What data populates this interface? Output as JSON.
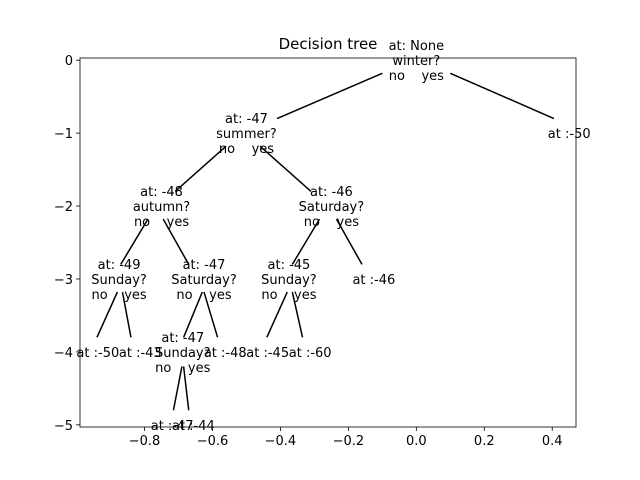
{
  "title": "Decision tree",
  "axes": {
    "xlim": [
      -0.99,
      0.47
    ],
    "ylim": [
      -5.03,
      0.03
    ],
    "xticks": [
      -0.8,
      -0.6,
      -0.4,
      -0.2,
      0.0,
      0.2,
      0.4
    ],
    "xtick_labels": [
      "−0.8",
      "−0.6",
      "−0.4",
      "−0.2",
      "0.0",
      "0.2",
      "0.4"
    ],
    "yticks": [
      0,
      -1,
      -2,
      -3,
      -4,
      -5
    ],
    "ytick_labels": [
      "0",
      "−1",
      "−2",
      "−3",
      "−4",
      "−5"
    ]
  },
  "nodes": [
    {
      "x": 0.0,
      "y": 0,
      "lines": [
        "at: None",
        "winter?",
        "no    yes"
      ]
    },
    {
      "x": -0.5,
      "y": -1,
      "lines": [
        "at: -47",
        "summer?",
        "no    yes"
      ]
    },
    {
      "x": 0.45,
      "y": -1,
      "lines": [
        "at :-50"
      ]
    },
    {
      "x": -0.75,
      "y": -2,
      "lines": [
        "at: -48",
        "autumn?",
        "no    yes"
      ]
    },
    {
      "x": -0.25,
      "y": -2,
      "lines": [
        "at: -46",
        "Saturday?",
        "no    yes"
      ]
    },
    {
      "x": -0.875,
      "y": -3,
      "lines": [
        "at: -49",
        "Sunday?",
        "no    yes"
      ]
    },
    {
      "x": -0.625,
      "y": -3,
      "lines": [
        "at: -47",
        "Saturday?",
        "no    yes"
      ]
    },
    {
      "x": -0.375,
      "y": -3,
      "lines": [
        "at: -45",
        "Sunday?",
        "no    yes"
      ]
    },
    {
      "x": -0.125,
      "y": -3,
      "lines": [
        "at :-46"
      ]
    },
    {
      "x": -0.9375,
      "y": -4,
      "lines": [
        "at :-50"
      ]
    },
    {
      "x": -0.8125,
      "y": -4,
      "lines": [
        "at :-43"
      ]
    },
    {
      "x": -0.6875,
      "y": -4,
      "lines": [
        "at: -47",
        "Sunday?",
        "no    yes"
      ]
    },
    {
      "x": -0.5625,
      "y": -4,
      "lines": [
        "at :-48"
      ]
    },
    {
      "x": -0.4375,
      "y": -4,
      "lines": [
        "at :-45"
      ]
    },
    {
      "x": -0.3125,
      "y": -4,
      "lines": [
        "at :-60"
      ]
    },
    {
      "x": -0.71875,
      "y": -5,
      "lines": [
        "at :-47"
      ]
    },
    {
      "x": -0.65625,
      "y": -5,
      "lines": [
        "at :-44"
      ]
    }
  ],
  "edges": [
    {
      "x1": -0.1,
      "y1": -0.18,
      "x2": -0.41,
      "y2": -0.8
    },
    {
      "x1": 0.1,
      "y1": -0.18,
      "x2": 0.405,
      "y2": -0.8
    },
    {
      "x1": -0.56,
      "y1": -1.18,
      "x2": -0.71,
      "y2": -1.8
    },
    {
      "x1": -0.46,
      "y1": -1.18,
      "x2": -0.31,
      "y2": -1.8
    },
    {
      "x1": -0.79,
      "y1": -2.18,
      "x2": -0.87,
      "y2": -2.8
    },
    {
      "x1": -0.745,
      "y1": -2.18,
      "x2": -0.67,
      "y2": -2.8
    },
    {
      "x1": -0.285,
      "y1": -2.18,
      "x2": -0.365,
      "y2": -2.8
    },
    {
      "x1": -0.235,
      "y1": -2.18,
      "x2": -0.16,
      "y2": -2.8
    },
    {
      "x1": -0.88,
      "y1": -3.18,
      "x2": -0.94,
      "y2": -3.8
    },
    {
      "x1": -0.865,
      "y1": -3.18,
      "x2": -0.84,
      "y2": -3.8
    },
    {
      "x1": -0.63,
      "y1": -3.18,
      "x2": -0.685,
      "y2": -3.8
    },
    {
      "x1": -0.625,
      "y1": -3.18,
      "x2": -0.585,
      "y2": -3.8
    },
    {
      "x1": -0.38,
      "y1": -3.18,
      "x2": -0.44,
      "y2": -3.8
    },
    {
      "x1": -0.365,
      "y1": -3.18,
      "x2": -0.335,
      "y2": -3.8
    },
    {
      "x1": -0.69,
      "y1": -4.2,
      "x2": -0.715,
      "y2": -4.8
    },
    {
      "x1": -0.685,
      "y1": -4.2,
      "x2": -0.67,
      "y2": -4.8
    }
  ]
}
